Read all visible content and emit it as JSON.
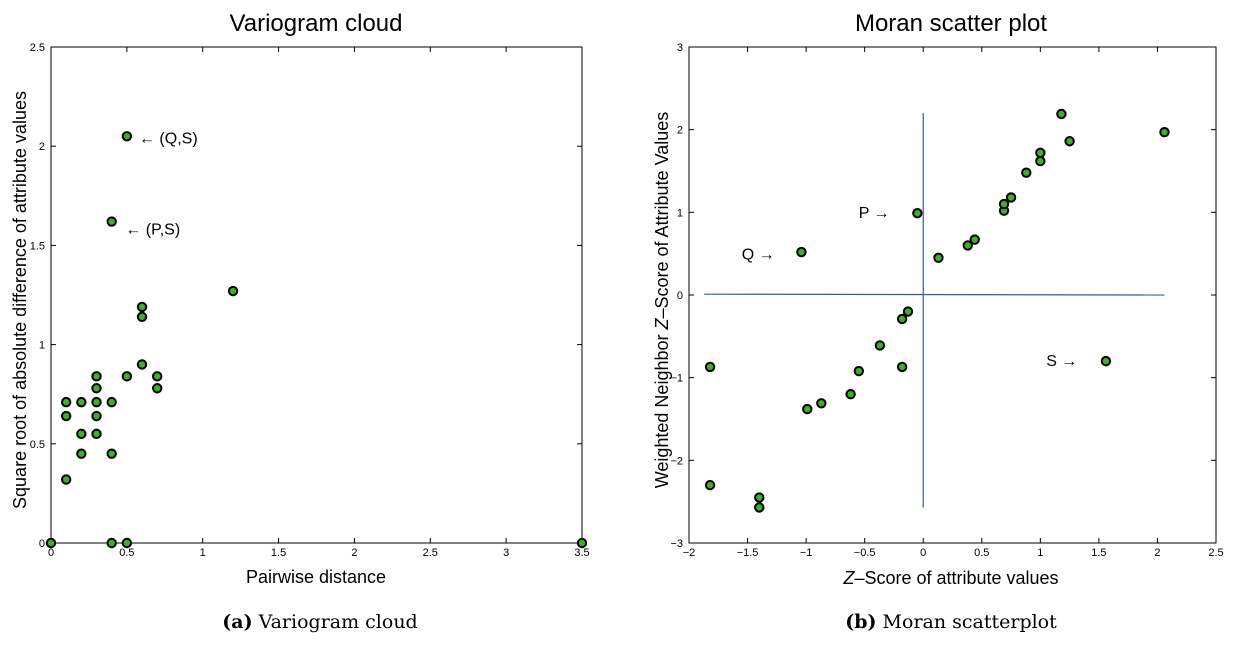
{
  "chart_data": [
    {
      "type": "scatter",
      "title": "Variogram cloud",
      "xlabel": "Pairwise distance",
      "ylabel": "Square root of absolute difference of attribute values",
      "xlim": [
        0,
        3.5
      ],
      "ylim": [
        0,
        2.5
      ],
      "xticks": [
        "0",
        "0.5",
        "1",
        "1.5",
        "2",
        "2.5",
        "3",
        "3.5"
      ],
      "yticks": [
        "0",
        "0.5",
        "1",
        "1.5",
        "2",
        "2.5"
      ],
      "grid": false,
      "marker_color": "#3fae2a",
      "caption_label": "(a)",
      "caption_text": "Variogram cloud",
      "points": [
        {
          "x": 0.0,
          "y": 0.0
        },
        {
          "x": 0.1,
          "y": 0.32
        },
        {
          "x": 0.1,
          "y": 0.64
        },
        {
          "x": 0.1,
          "y": 0.71
        },
        {
          "x": 0.2,
          "y": 0.45
        },
        {
          "x": 0.2,
          "y": 0.55
        },
        {
          "x": 0.2,
          "y": 0.71
        },
        {
          "x": 0.3,
          "y": 0.55
        },
        {
          "x": 0.3,
          "y": 0.64
        },
        {
          "x": 0.3,
          "y": 0.71
        },
        {
          "x": 0.3,
          "y": 0.78
        },
        {
          "x": 0.3,
          "y": 0.84
        },
        {
          "x": 0.4,
          "y": 0.0
        },
        {
          "x": 0.4,
          "y": 0.45
        },
        {
          "x": 0.4,
          "y": 0.71
        },
        {
          "x": 0.4,
          "y": 1.62
        },
        {
          "x": 0.5,
          "y": 0.0
        },
        {
          "x": 0.5,
          "y": 0.84
        },
        {
          "x": 0.5,
          "y": 2.05
        },
        {
          "x": 0.6,
          "y": 0.9
        },
        {
          "x": 0.6,
          "y": 1.14
        },
        {
          "x": 0.6,
          "y": 1.19
        },
        {
          "x": 0.7,
          "y": 0.78
        },
        {
          "x": 0.7,
          "y": 0.84
        },
        {
          "x": 1.2,
          "y": 1.27
        },
        {
          "x": 3.5,
          "y": 0.0
        }
      ],
      "annotations": [
        {
          "text": "← (Q,S)",
          "x": 0.58,
          "y": 2.04
        },
        {
          "text": "← (P,S)",
          "x": 0.49,
          "y": 1.58
        }
      ]
    },
    {
      "type": "scatter",
      "title": "Moran scatter plot",
      "xlabel": "Z–Score of attribute values",
      "xlabel_italic": "Z",
      "xlabel_rest": "–Score of attribute values",
      "ylabel": "Weighted Neighbor Z–Score of Attribute Values",
      "ylabel_pre": "Weighted Neighbor ",
      "ylabel_italic": "Z",
      "ylabel_rest": "–Score of Attribute Values",
      "xlim": [
        -2,
        2.5
      ],
      "ylim": [
        -3,
        3
      ],
      "xticks": [
        "−2",
        "−1.5",
        "−1",
        "−0.5",
        "0",
        "0.5",
        "1",
        "1.5",
        "2",
        "2.5"
      ],
      "yticks": [
        "−3",
        "−2",
        "−1",
        "0",
        "1",
        "2",
        "3"
      ],
      "grid": false,
      "marker_color": "#3fae2a",
      "line_color": "#3a55a6",
      "caption_label": "(b)",
      "caption_text": "Moran scatterplot",
      "points": [
        {
          "x": -1.82,
          "y": -0.87
        },
        {
          "x": -1.82,
          "y": -2.3
        },
        {
          "x": -1.4,
          "y": -2.45
        },
        {
          "x": -1.4,
          "y": -2.57
        },
        {
          "x": -1.04,
          "y": 0.52
        },
        {
          "x": -0.99,
          "y": -1.38
        },
        {
          "x": -0.87,
          "y": -1.31
        },
        {
          "x": -0.62,
          "y": -1.2
        },
        {
          "x": -0.55,
          "y": -0.92
        },
        {
          "x": -0.37,
          "y": -0.61
        },
        {
          "x": -0.18,
          "y": -0.87
        },
        {
          "x": -0.18,
          "y": -0.29
        },
        {
          "x": -0.13,
          "y": -0.2
        },
        {
          "x": -0.05,
          "y": 0.99
        },
        {
          "x": 0.13,
          "y": 0.45
        },
        {
          "x": 0.38,
          "y": 0.6
        },
        {
          "x": 0.44,
          "y": 0.67
        },
        {
          "x": 0.69,
          "y": 1.02
        },
        {
          "x": 0.69,
          "y": 1.1
        },
        {
          "x": 0.75,
          "y": 1.18
        },
        {
          "x": 0.88,
          "y": 1.48
        },
        {
          "x": 1.0,
          "y": 1.62
        },
        {
          "x": 1.0,
          "y": 1.72
        },
        {
          "x": 1.18,
          "y": 2.19
        },
        {
          "x": 1.25,
          "y": 1.86
        },
        {
          "x": 1.56,
          "y": -0.8
        },
        {
          "x": 2.06,
          "y": 1.97
        }
      ],
      "annotations": [
        {
          "text": "P →",
          "x": -0.55,
          "y": 0.99
        },
        {
          "text": "Q →",
          "x": -1.55,
          "y": 0.49
        },
        {
          "text": "S →",
          "x": 1.05,
          "y": -0.8
        }
      ],
      "reference_lines": [
        {
          "x1": -1.87,
          "y1": 0.01,
          "x2": 2.06,
          "y2": 0.0
        },
        {
          "x1": 0.0,
          "y1": 2.2,
          "x2": 0.0,
          "y2": -2.57
        }
      ]
    }
  ]
}
